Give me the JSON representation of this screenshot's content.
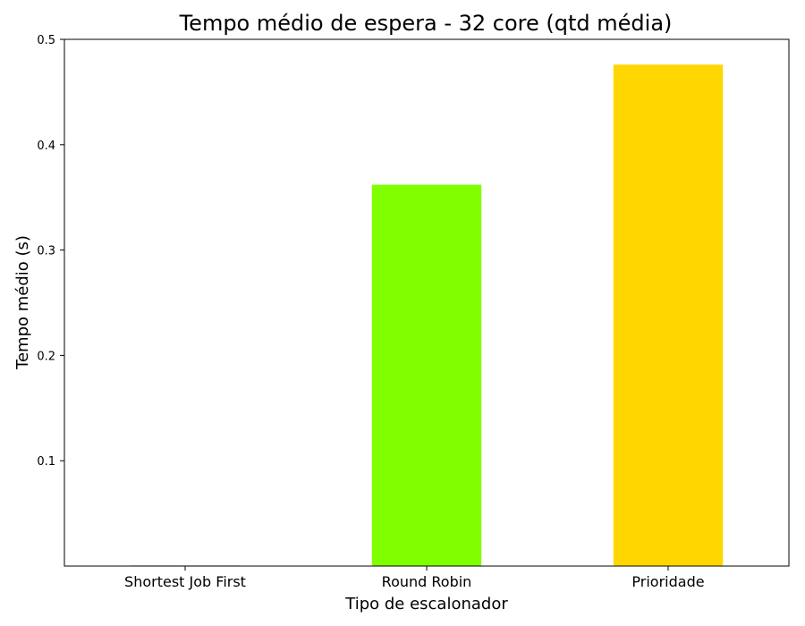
{
  "chart_data": {
    "type": "bar",
    "title": "Tempo médio de espera - 32 core (qtd média)",
    "xlabel": "Tipo de escalonador",
    "ylabel": "Tempo médio (s)",
    "categories": [
      "Shortest Job First",
      "Round Robin",
      "Prioridade"
    ],
    "values": [
      0.0005,
      0.362,
      0.476
    ],
    "colors": [
      "#1f77b4",
      "#7fff00",
      "#ffd700"
    ],
    "ylim": [
      0,
      0.5
    ],
    "yticks": [
      0.1,
      0.2,
      0.3,
      0.4,
      0.5
    ],
    "ytick_labels": [
      "0.1",
      "0.2",
      "0.3",
      "0.4",
      "0.5"
    ],
    "grid": false,
    "legend": "none"
  }
}
